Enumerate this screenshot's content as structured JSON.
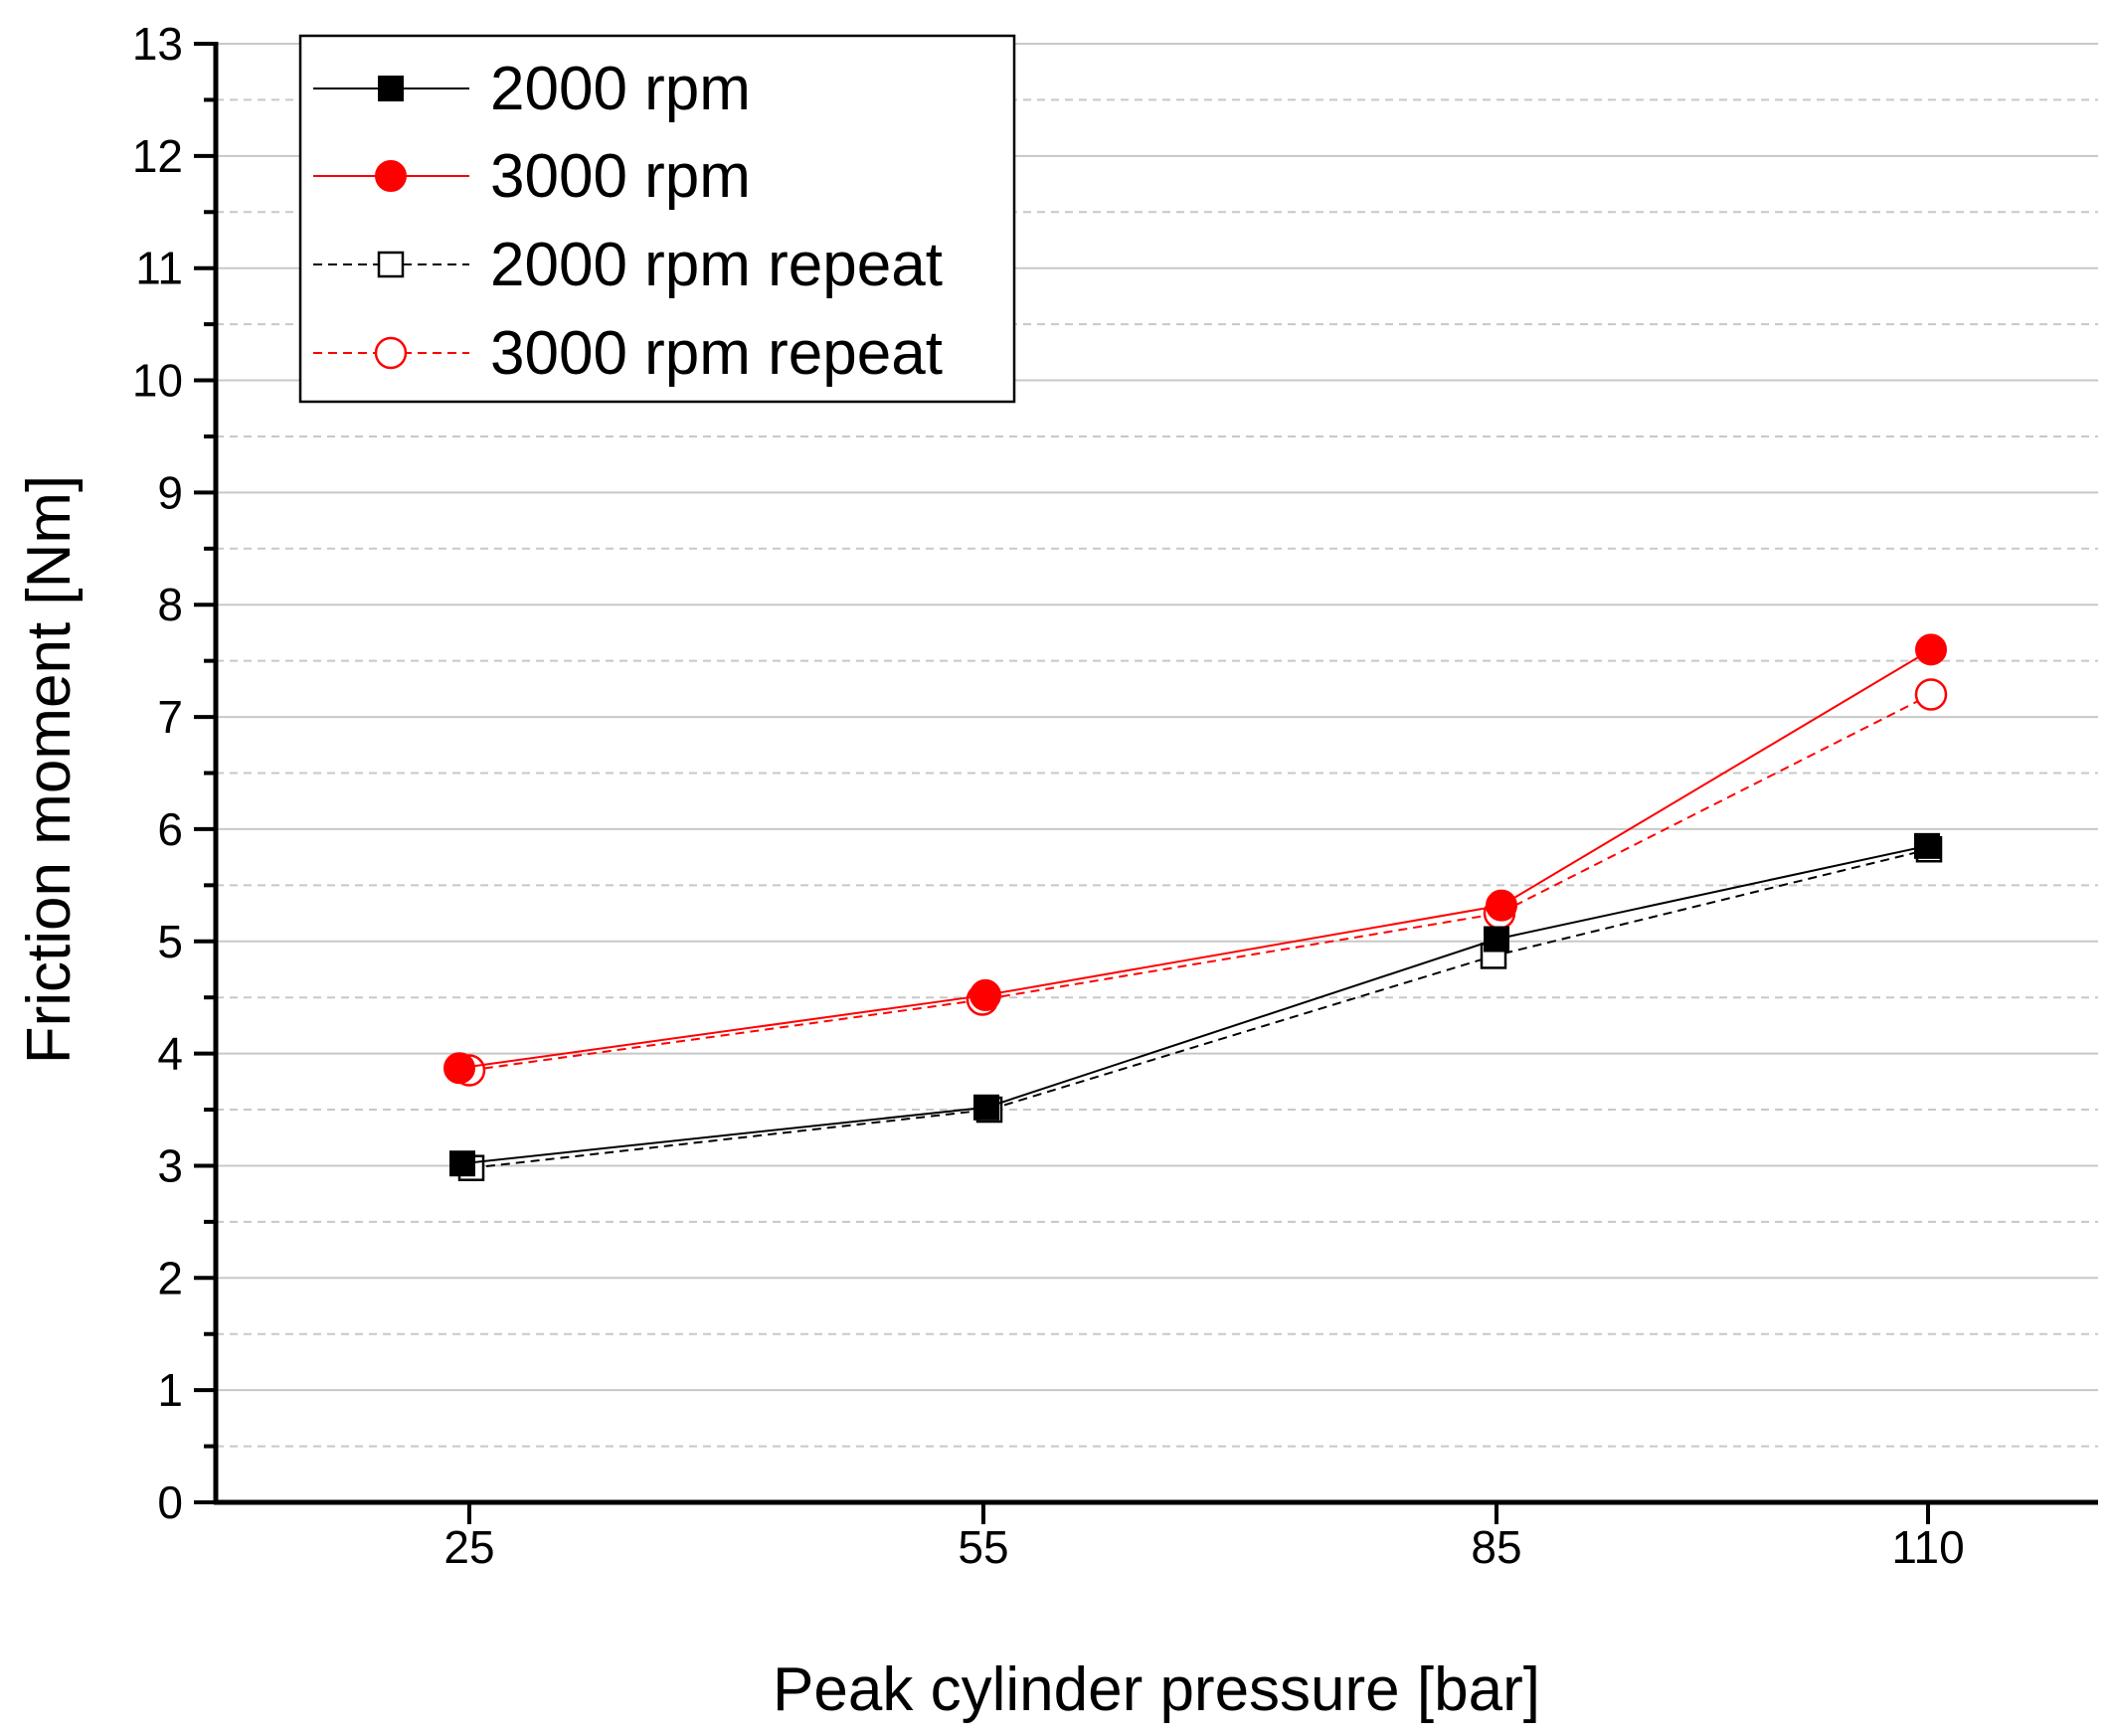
{
  "chart_data": {
    "type": "line",
    "title": "",
    "xlabel": "Peak cylinder pressure [bar]",
    "ylabel": "Friction moment [Nm]",
    "categories": [
      "25",
      "55",
      "85",
      "110"
    ],
    "ylim": [
      0,
      13
    ],
    "yticks": [
      "0",
      "1",
      "2",
      "3",
      "4",
      "5",
      "6",
      "7",
      "8",
      "9",
      "10",
      "11",
      "12",
      "13"
    ],
    "grid": "major solid, minor dashed (horizontal)",
    "legend_position": "top-left",
    "series": [
      {
        "name": "2000 rpm",
        "color": "#000000",
        "marker": "filled-square",
        "line": "solid",
        "values": [
          3.02,
          3.52,
          5.02,
          5.85
        ]
      },
      {
        "name": "3000 rpm",
        "color": "#ff0000",
        "marker": "filled-circle",
        "line": "solid",
        "values": [
          3.87,
          4.52,
          5.32,
          7.6
        ]
      },
      {
        "name": "2000 rpm repeat",
        "color": "#000000",
        "marker": "open-square",
        "line": "dashed",
        "values": [
          2.98,
          3.5,
          4.87,
          5.82
        ]
      },
      {
        "name": "3000 rpm repeat",
        "color": "#ff0000",
        "marker": "open-circle",
        "line": "dashed",
        "values": [
          3.85,
          4.48,
          5.25,
          7.2
        ]
      }
    ]
  }
}
